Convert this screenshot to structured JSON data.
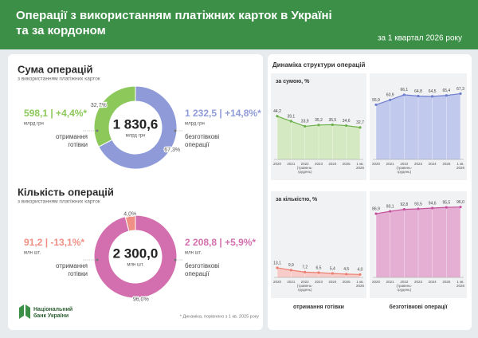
{
  "header": {
    "title": "Операції з використанням платіжних карток в Україні\nта за кордоном",
    "subtitle": "за 1 квартал 2026 року"
  },
  "dynamics_title": "Динаміка структури операцій",
  "footnote": "* Динаміка, порівняно з 1 кв. 2025 року",
  "logo": "Національний\nбанк України",
  "chart_data": [
    {
      "type": "donut",
      "title": "Сума операцій",
      "subtitle": "з використанням платіжних карток",
      "categories": [
        "отримання\nготівки",
        "безготівкові\nоперації"
      ],
      "values": [
        32.7,
        67.3
      ],
      "value_labels": [
        "32,7%",
        "67,3%"
      ],
      "colors": [
        "#8cc85a",
        "#8f9bd8"
      ],
      "total_label": "1 830,6",
      "unit": "млрд грн",
      "amount_labels": [
        "598,1 | +4,4%*",
        "1 232,5 | +14,8%*"
      ]
    },
    {
      "type": "donut",
      "title": "Кількість операцій",
      "subtitle": "з використанням платіжних карток",
      "categories": [
        "отримання\nготівки",
        "безготівкові\nоперації"
      ],
      "values": [
        4.0,
        96.0
      ],
      "value_labels": [
        "4,0%",
        "96,0%"
      ],
      "colors": [
        "#f08f84",
        "#d36fae"
      ],
      "total_label": "2 300,0",
      "unit": "млн шт.",
      "amount_labels": [
        "91,2 | -13,1%*",
        "2 208,8 | +5,9%*"
      ]
    },
    {
      "type": "area",
      "title": "за сумою, %",
      "categories": [
        "2020",
        "2021",
        "2022\n(травень-\nгрудень)",
        "2023",
        "2024",
        "2025",
        "1 кв.\n2026"
      ],
      "values": [
        44.2,
        39.1,
        33.9,
        35.2,
        35.5,
        34.6,
        32.7
      ],
      "value_labels": [
        "44,2",
        "39,1",
        "33,9",
        "35,2",
        "35,5",
        "34,6",
        "32,7"
      ],
      "color": "#6cb04a",
      "fill": "#cfe8b8",
      "ylim": [
        0,
        75
      ]
    },
    {
      "type": "area",
      "categories": [
        "2020",
        "2021",
        "2022\n(травень-\nгрудень)",
        "2023",
        "2024",
        "2025",
        "1 кв.\n2026"
      ],
      "values": [
        55.9,
        60.9,
        66.1,
        64.8,
        64.5,
        65.4,
        67.3
      ],
      "value_labels": [
        "55,9",
        "60,9",
        "66,1",
        "64,8",
        "64,5",
        "65,4",
        "67,3"
      ],
      "color": "#6f7fcf",
      "fill": "#b9c2eb",
      "ylim": [
        0,
        75
      ]
    },
    {
      "type": "area",
      "title": "за кількістю, %",
      "caption": "отримання готівки",
      "categories": [
        "2020",
        "2021",
        "2022\n(травень-\nгрудень)",
        "2023",
        "2024",
        "2025",
        "1 кв.\n2026"
      ],
      "values": [
        13.1,
        9.9,
        7.2,
        6.5,
        5.4,
        4.5,
        4.0
      ],
      "value_labels": [
        "13,1",
        "9,9",
        "7,2",
        "6,5",
        "5,4",
        "4,5",
        "4,0"
      ],
      "color": "#ec7e72",
      "fill": "#f8c6bf",
      "ylim": [
        0,
        100
      ]
    },
    {
      "type": "area",
      "caption": "безготівкові операції",
      "categories": [
        "2020",
        "2021",
        "2022\n(травень-\nгрудень)",
        "2023",
        "2024",
        "2025",
        "1 кв.\n2026"
      ],
      "values": [
        86.9,
        90.1,
        92.8,
        93.5,
        94.6,
        95.5,
        96.0
      ],
      "value_labels": [
        "86,9",
        "90,1",
        "92,8",
        "93,5",
        "94,6",
        "95,5",
        "96,0"
      ],
      "color": "#c4529c",
      "fill": "#e3a3cd",
      "ylim": [
        0,
        100
      ]
    }
  ]
}
